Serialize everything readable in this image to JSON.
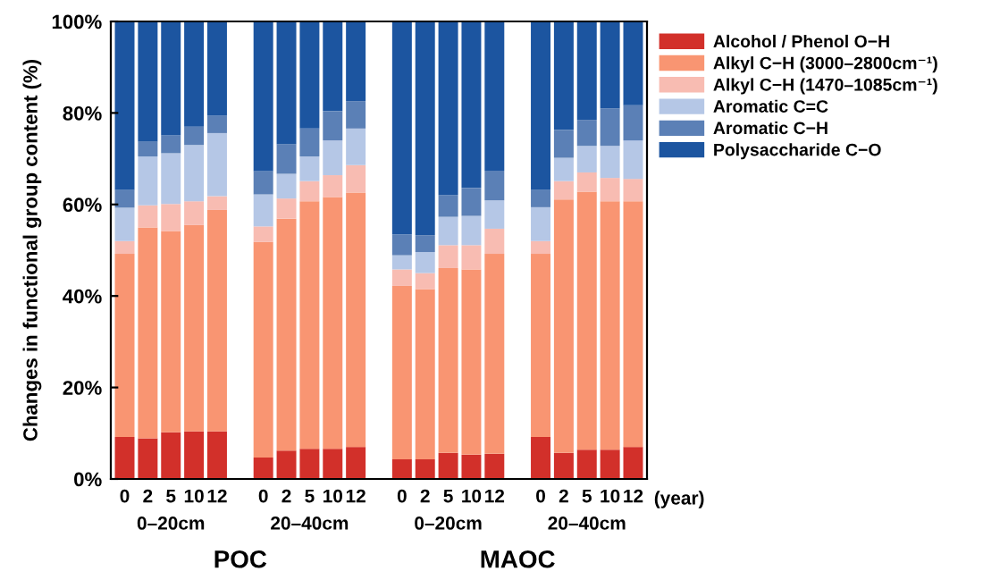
{
  "chart_data": {
    "type": "bar",
    "stacked": true,
    "ylabel": "Changes in functional group content (%)",
    "categories": [
      "0",
      "2",
      "5",
      "10",
      "12",
      null,
      "0",
      "2",
      "5",
      "10",
      "12",
      null,
      "0",
      "2",
      "5",
      "10",
      "12",
      null,
      "0",
      "2",
      "5",
      "10",
      "12"
    ],
    "series": [
      {
        "name": "Alcohol / Phenol O−H",
        "color": "#d2302a",
        "values": [
          9.2,
          8.9,
          10.2,
          10.4,
          10.4,
          null,
          4.7,
          6.2,
          6.6,
          6.6,
          7.0,
          null,
          4.3,
          4.3,
          5.7,
          5.3,
          5.5,
          null,
          9.2,
          5.7,
          6.4,
          6.4,
          7.0
        ]
      },
      {
        "name": "Alkyl C−H (3000–2800cm⁻¹)",
        "color": "#f99572",
        "values": [
          40.0,
          46.1,
          44.0,
          45.1,
          48.4,
          null,
          47.1,
          50.7,
          54.1,
          55.0,
          55.6,
          null,
          37.9,
          37.2,
          40.4,
          40.5,
          43.7,
          null,
          40.0,
          55.4,
          56.4,
          54.3,
          53.7
        ]
      },
      {
        "name": "Alkyl C−H (1470–1085cm⁻¹)",
        "color": "#f8bcb2",
        "values": [
          2.8,
          4.8,
          5.9,
          5.2,
          3.0,
          null,
          3.4,
          4.4,
          4.4,
          4.8,
          6.0,
          null,
          3.6,
          3.5,
          5.0,
          5.3,
          5.5,
          null,
          2.8,
          4.0,
          4.2,
          5.1,
          4.9
        ]
      },
      {
        "name": "Aromatic C=C",
        "color": "#b5c7e6",
        "values": [
          7.3,
          10.7,
          11.1,
          12.3,
          13.8,
          null,
          7.0,
          5.4,
          5.4,
          7.6,
          8.0,
          null,
          3.1,
          4.6,
          6.2,
          6.4,
          6.2,
          null,
          7.4,
          5.1,
          5.8,
          7.0,
          8.4
        ]
      },
      {
        "name": "Aromatic C−H",
        "color": "#5b80b6",
        "values": [
          3.9,
          3.3,
          3.9,
          4.0,
          3.8,
          null,
          5.1,
          6.5,
          6.1,
          6.4,
          6.0,
          null,
          4.5,
          3.7,
          4.7,
          6.1,
          6.5,
          null,
          3.8,
          6.1,
          5.7,
          8.2,
          7.7
        ]
      },
      {
        "name": "Polysaccharide C−O",
        "color": "#1c55a0",
        "values": [
          36.8,
          26.2,
          24.9,
          23.0,
          20.6,
          null,
          32.7,
          26.8,
          23.4,
          19.6,
          17.4,
          null,
          46.6,
          46.7,
          38.0,
          36.4,
          32.6,
          null,
          36.8,
          23.7,
          21.5,
          19.0,
          18.3
        ]
      }
    ],
    "ylim": [
      0,
      100
    ],
    "yticks": [
      {
        "value": 0,
        "label": "0%"
      },
      {
        "value": 20,
        "label": "20%"
      },
      {
        "value": 40,
        "label": "40%"
      },
      {
        "value": 60,
        "label": "60%"
      },
      {
        "value": 80,
        "label": "80%"
      },
      {
        "value": 100,
        "label": "100%"
      }
    ],
    "legend": "right",
    "grid": false,
    "annotations": [
      "(year)",
      "0–20cm",
      "20–40cm",
      "0–20cm",
      "20–40cm",
      "POC",
      "MAOC"
    ]
  }
}
